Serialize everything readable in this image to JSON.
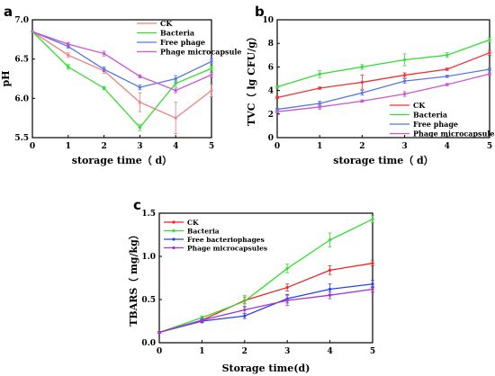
{
  "chart_data": [
    {
      "type": "line",
      "panel_label": "a",
      "xlabel": "storage time（ d）",
      "ylabel": "pH",
      "x": [
        0,
        1,
        2,
        3,
        4,
        5
      ],
      "xlim": [
        0,
        5
      ],
      "ylim": [
        5.5,
        7.0
      ],
      "x_ticks": [
        "0",
        "1",
        "2",
        "3",
        "4",
        "5"
      ],
      "y_ticks": [
        "5.5",
        "6.0",
        "6.5",
        "7.0"
      ],
      "legend_position": "top-right",
      "grid": false,
      "series": [
        {
          "name": "CK",
          "color": "#f07f7f",
          "values": [
            6.85,
            6.55,
            6.35,
            5.95,
            5.75,
            6.1
          ],
          "errors": [
            0,
            0.03,
            0.03,
            0.12,
            0.2,
            0.08
          ]
        },
        {
          "name": "Bacteria",
          "color": "#33dd33",
          "values": [
            6.85,
            6.4,
            6.13,
            5.63,
            6.19,
            6.38
          ],
          "errors": [
            0,
            0.03,
            0.02,
            0.04,
            0.04,
            0.03
          ]
        },
        {
          "name": "Free phage",
          "color": "#5577e6",
          "values": [
            6.85,
            6.66,
            6.37,
            6.14,
            6.25,
            6.47
          ],
          "errors": [
            0,
            0.02,
            0.03,
            0.03,
            0.04,
            0.03
          ]
        },
        {
          "name": "Phage microcapsule",
          "color": "#cc55cc",
          "values": [
            6.85,
            6.69,
            6.57,
            6.28,
            6.1,
            6.3
          ],
          "errors": [
            0,
            0.02,
            0.03,
            0.02,
            0.03,
            0.03
          ]
        }
      ]
    },
    {
      "type": "line",
      "panel_label": "b",
      "xlabel": "storage time（ d）",
      "ylabel": "TVC（ lg CFU/g）",
      "x": [
        0,
        1,
        2,
        3,
        4,
        5
      ],
      "xlim": [
        0,
        5
      ],
      "ylim": [
        0,
        10
      ],
      "x_ticks": [
        "0",
        "1",
        "2",
        "3",
        "4",
        "5"
      ],
      "y_ticks": [
        "0",
        "2",
        "4",
        "6",
        "8",
        "10"
      ],
      "legend_position": "bottom-right",
      "grid": false,
      "series": [
        {
          "name": "CK",
          "color": "#ee3333",
          "values": [
            3.4,
            4.2,
            4.7,
            5.3,
            5.8,
            7.2
          ],
          "errors": [
            0.1,
            0.1,
            0.6,
            0.2,
            0.1,
            0.2
          ]
        },
        {
          "name": "Bacteria",
          "color": "#33dd33",
          "values": [
            4.3,
            5.4,
            6.0,
            6.6,
            7.0,
            8.3
          ],
          "errors": [
            0.1,
            0.3,
            0.2,
            0.5,
            0.2,
            0.2
          ]
        },
        {
          "name": "Free phage",
          "color": "#5577e6",
          "values": [
            2.4,
            2.9,
            3.8,
            4.8,
            5.2,
            5.8
          ],
          "errors": [
            0.1,
            0.2,
            0.2,
            0.2,
            0.1,
            0.1
          ]
        },
        {
          "name": "Phage microcapsule",
          "color": "#cc55cc",
          "values": [
            2.2,
            2.6,
            3.1,
            3.7,
            4.5,
            5.4
          ],
          "errors": [
            0.1,
            0.2,
            0.1,
            0.2,
            0.1,
            0.1
          ]
        }
      ]
    },
    {
      "type": "line",
      "panel_label": "c",
      "xlabel": "Storage time(d)",
      "ylabel": "TBARS（ mg/kg）",
      "x": [
        0,
        1,
        2,
        3,
        4,
        5
      ],
      "xlim": [
        0,
        5
      ],
      "ylim": [
        0,
        1.5
      ],
      "x_ticks": [
        "0",
        "1",
        "2",
        "3",
        "4",
        "5"
      ],
      "y_ticks": [
        "0.0",
        "0.5",
        "1.0",
        "1.5"
      ],
      "legend_position": "top-left",
      "grid": false,
      "series": [
        {
          "name": "CK",
          "color": "#ee2222",
          "values": [
            0.12,
            0.26,
            0.49,
            0.64,
            0.84,
            0.92
          ],
          "errors": [
            0.01,
            0.02,
            0.04,
            0.04,
            0.05,
            0.03
          ]
        },
        {
          "name": "Bacteria",
          "color": "#33dd33",
          "values": [
            0.12,
            0.29,
            0.48,
            0.86,
            1.19,
            1.43
          ],
          "errors": [
            0.01,
            0.02,
            0.07,
            0.05,
            0.08,
            0.04
          ]
        },
        {
          "name": "Free bacteriophages",
          "color": "#2244ee",
          "values": [
            0.12,
            0.25,
            0.31,
            0.51,
            0.62,
            0.68
          ],
          "errors": [
            0.01,
            0.02,
            0.03,
            0.05,
            0.06,
            0.04
          ]
        },
        {
          "name": "Phage microcapsules",
          "color": "#aa33cc",
          "values": [
            0.12,
            0.26,
            0.38,
            0.49,
            0.55,
            0.62
          ],
          "errors": [
            0.01,
            0.02,
            0.04,
            0.06,
            0.04,
            0.03
          ]
        }
      ]
    }
  ]
}
